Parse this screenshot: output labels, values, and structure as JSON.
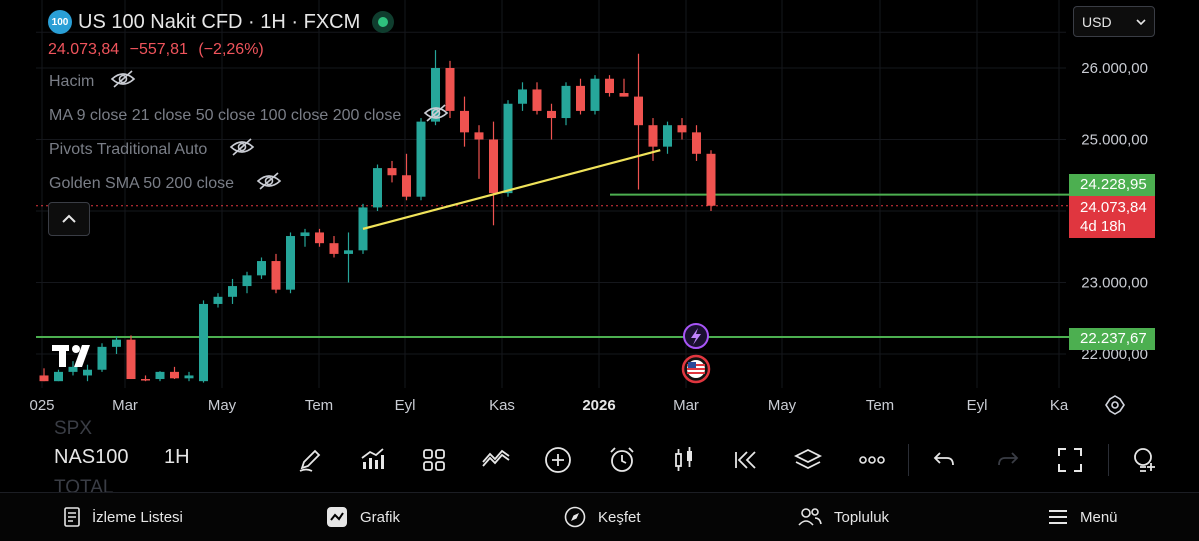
{
  "header": {
    "symbol_icon_text": "100",
    "title": "US 100 Nakit CFD · 1H · FXCM",
    "last_price": "24.073,84",
    "change": "−557,81",
    "change_pct": "(−2,26%)"
  },
  "indicators": [
    {
      "label": "Hacim"
    },
    {
      "label": "MA 9 close 21 close 50 close 100 close 200 close"
    },
    {
      "label": "Pivots Traditional Auto"
    },
    {
      "label": "Golden SMA 50 200 close"
    }
  ],
  "currency_select": {
    "value": "USD"
  },
  "price_tags": {
    "green_upper": "24.228,95",
    "current": "24.073,84",
    "countdown": "4d 18h",
    "green_lower": "22.237,67"
  },
  "chart_data": {
    "type": "candlestick",
    "y_axis_labels": [
      "26.000,00",
      "25.000,00",
      "23.000,00",
      "22.000,00"
    ],
    "x_axis_labels": [
      "025",
      "Mar",
      "May",
      "Tem",
      "Eyl",
      "Kas",
      "2026",
      "Mar",
      "May",
      "Tem",
      "Eyl",
      "Ka"
    ],
    "ylim": [
      21600,
      26400
    ],
    "horizontal_lines": [
      24228.95,
      22237.67
    ],
    "current_price": 24073.84,
    "trendline": {
      "start": {
        "t": 22.0,
        "y": 23750
      },
      "end": {
        "t": 42.5,
        "y": 24850
      }
    },
    "candles": [
      {
        "o": 21700,
        "h": 21800,
        "l": 21620,
        "c": 21620
      },
      {
        "o": 21620,
        "h": 21780,
        "l": 21620,
        "c": 21750
      },
      {
        "o": 21750,
        "h": 21900,
        "l": 21700,
        "c": 21820
      },
      {
        "o": 21700,
        "h": 21850,
        "l": 21620,
        "c": 21780
      },
      {
        "o": 21780,
        "h": 22150,
        "l": 21750,
        "c": 22100
      },
      {
        "o": 22100,
        "h": 22250,
        "l": 22000,
        "c": 22200
      },
      {
        "o": 22200,
        "h": 22260,
        "l": 21650,
        "c": 21650
      },
      {
        "o": 21650,
        "h": 21700,
        "l": 21620,
        "c": 21640
      },
      {
        "o": 21650,
        "h": 21760,
        "l": 21620,
        "c": 21750
      },
      {
        "o": 21750,
        "h": 21820,
        "l": 21650,
        "c": 21660
      },
      {
        "o": 21660,
        "h": 21750,
        "l": 21620,
        "c": 21700
      },
      {
        "o": 21620,
        "h": 22750,
        "l": 21600,
        "c": 22700
      },
      {
        "o": 22700,
        "h": 22850,
        "l": 22650,
        "c": 22800
      },
      {
        "o": 22800,
        "h": 23050,
        "l": 22700,
        "c": 22950
      },
      {
        "o": 22950,
        "h": 23150,
        "l": 22850,
        "c": 23100
      },
      {
        "o": 23100,
        "h": 23350,
        "l": 23050,
        "c": 23300
      },
      {
        "o": 23300,
        "h": 23400,
        "l": 22850,
        "c": 22900
      },
      {
        "o": 22900,
        "h": 23700,
        "l": 22850,
        "c": 23650
      },
      {
        "o": 23650,
        "h": 23750,
        "l": 23500,
        "c": 23700
      },
      {
        "o": 23700,
        "h": 23750,
        "l": 23500,
        "c": 23550
      },
      {
        "o": 23550,
        "h": 23650,
        "l": 23350,
        "c": 23400
      },
      {
        "o": 23400,
        "h": 23700,
        "l": 23000,
        "c": 23450
      },
      {
        "o": 23450,
        "h": 24100,
        "l": 23400,
        "c": 24050
      },
      {
        "o": 24050,
        "h": 24650,
        "l": 24000,
        "c": 24600
      },
      {
        "o": 24600,
        "h": 24700,
        "l": 24400,
        "c": 24500
      },
      {
        "o": 24500,
        "h": 24800,
        "l": 24150,
        "c": 24200
      },
      {
        "o": 24200,
        "h": 25300,
        "l": 24150,
        "c": 25250
      },
      {
        "o": 25250,
        "h": 26250,
        "l": 25200,
        "c": 26000
      },
      {
        "o": 26000,
        "h": 26100,
        "l": 25300,
        "c": 25400
      },
      {
        "o": 25400,
        "h": 25600,
        "l": 24900,
        "c": 25100
      },
      {
        "o": 25100,
        "h": 25200,
        "l": 24450,
        "c": 25000
      },
      {
        "o": 25000,
        "h": 25250,
        "l": 23800,
        "c": 24250
      },
      {
        "o": 24250,
        "h": 25550,
        "l": 24200,
        "c": 25500
      },
      {
        "o": 25500,
        "h": 25800,
        "l": 25400,
        "c": 25700
      },
      {
        "o": 25700,
        "h": 25800,
        "l": 25350,
        "c": 25400
      },
      {
        "o": 25400,
        "h": 25500,
        "l": 25000,
        "c": 25300
      },
      {
        "o": 25300,
        "h": 25800,
        "l": 25200,
        "c": 25750
      },
      {
        "o": 25750,
        "h": 25850,
        "l": 25350,
        "c": 25400
      },
      {
        "o": 25400,
        "h": 25900,
        "l": 25350,
        "c": 25850
      },
      {
        "o": 25850,
        "h": 25900,
        "l": 25600,
        "c": 25650
      },
      {
        "o": 25650,
        "h": 25850,
        "l": 25600,
        "c": 25600
      },
      {
        "o": 25600,
        "h": 26200,
        "l": 24300,
        "c": 25200
      },
      {
        "o": 25200,
        "h": 25300,
        "l": 24700,
        "c": 24900
      },
      {
        "o": 24900,
        "h": 25250,
        "l": 24800,
        "c": 25200
      },
      {
        "o": 25200,
        "h": 25300,
        "l": 25000,
        "c": 25100
      },
      {
        "o": 25100,
        "h": 25200,
        "l": 24700,
        "c": 24800
      },
      {
        "o": 24800,
        "h": 24850,
        "l": 24000,
        "c": 24073.84
      }
    ]
  },
  "toolbar": {
    "ghost_top": "SPX",
    "symbol": "NAS100",
    "timeframe": "1H",
    "ghost_bottom": "TOTAL"
  },
  "bottom_nav": [
    {
      "label": "İzleme Listesi"
    },
    {
      "label": "Grafik"
    },
    {
      "label": "Keşfet"
    },
    {
      "label": "Topluluk"
    },
    {
      "label": "Menü"
    }
  ]
}
